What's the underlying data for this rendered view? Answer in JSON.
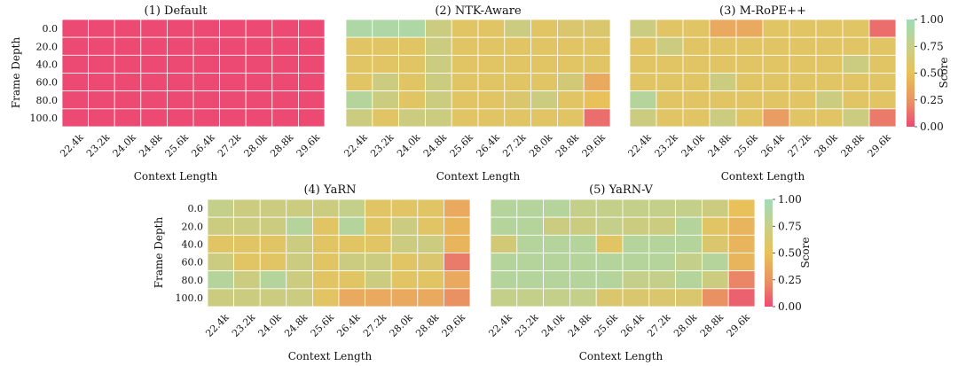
{
  "colormap": {
    "low": "#ec4a73",
    "mid": "#e8c15a",
    "high": "#9fdcb8"
  },
  "chart_data": [
    {
      "type": "heatmap",
      "title": "(1) Default",
      "xlabel": "Context Length",
      "ylabel": "Frame Depth",
      "x_labels": [
        "22.4k",
        "23.2k",
        "24.0k",
        "24.8k",
        "25.6k",
        "26.4k",
        "27.2k",
        "28.0k",
        "28.8k",
        "29.6k"
      ],
      "y_labels": [
        "0.0",
        "20.0",
        "40.0",
        "60.0",
        "80.0",
        "100.0"
      ],
      "values": [
        [
          0,
          0,
          0,
          0,
          0,
          0,
          0,
          0,
          0,
          0
        ],
        [
          0,
          0,
          0,
          0,
          0,
          0,
          0,
          0,
          0,
          0
        ],
        [
          0,
          0,
          0,
          0,
          0,
          0,
          0,
          0,
          0,
          0
        ],
        [
          0,
          0,
          0,
          0,
          0,
          0,
          0,
          0,
          0,
          0
        ],
        [
          0,
          0,
          0,
          0,
          0,
          0,
          0,
          0,
          0,
          0
        ],
        [
          0,
          0,
          0,
          0,
          0,
          0,
          0,
          0,
          0,
          0
        ]
      ]
    },
    {
      "type": "heatmap",
      "title": "(2) NTK-Aware",
      "xlabel": "Context Length",
      "ylabel": "",
      "x_labels": [
        "22.4k",
        "23.2k",
        "24.0k",
        "24.8k",
        "25.6k",
        "26.4k",
        "27.2k",
        "28.0k",
        "28.8k",
        "29.6k"
      ],
      "y_labels": [],
      "values": [
        [
          0.9,
          0.9,
          0.9,
          0.7,
          0.55,
          0.55,
          0.7,
          0.55,
          0.6,
          0.6
        ],
        [
          0.55,
          0.55,
          0.55,
          0.7,
          0.55,
          0.55,
          0.55,
          0.55,
          0.55,
          0.55
        ],
        [
          0.55,
          0.55,
          0.55,
          0.7,
          0.55,
          0.55,
          0.55,
          0.55,
          0.55,
          0.55
        ],
        [
          0.55,
          0.7,
          0.55,
          0.7,
          0.55,
          0.55,
          0.55,
          0.55,
          0.65,
          0.4
        ],
        [
          0.85,
          0.7,
          0.55,
          0.7,
          0.55,
          0.55,
          0.6,
          0.7,
          0.55,
          0.5
        ],
        [
          0.7,
          0.55,
          0.7,
          0.7,
          0.55,
          0.55,
          0.55,
          0.55,
          0.55,
          0.15
        ]
      ]
    },
    {
      "type": "heatmap",
      "title": "(3) M-RoPE++",
      "xlabel": "Context Length",
      "ylabel": "",
      "x_labels": [
        "22.4k",
        "23.2k",
        "24.0k",
        "24.8k",
        "25.6k",
        "26.4k",
        "27.2k",
        "28.0k",
        "28.8k",
        "29.6k"
      ],
      "y_labels": [],
      "values": [
        [
          0.7,
          0.55,
          0.55,
          0.4,
          0.4,
          0.55,
          0.55,
          0.55,
          0.55,
          0.15
        ],
        [
          0.55,
          0.7,
          0.55,
          0.55,
          0.55,
          0.55,
          0.55,
          0.55,
          0.55,
          0.55
        ],
        [
          0.55,
          0.55,
          0.55,
          0.55,
          0.55,
          0.55,
          0.55,
          0.55,
          0.7,
          0.55
        ],
        [
          0.55,
          0.55,
          0.55,
          0.7,
          0.55,
          0.55,
          0.55,
          0.55,
          0.55,
          0.55
        ],
        [
          0.85,
          0.55,
          0.55,
          0.55,
          0.55,
          0.55,
          0.55,
          0.7,
          0.55,
          0.55
        ],
        [
          0.7,
          0.55,
          0.55,
          0.7,
          0.55,
          0.35,
          0.55,
          0.55,
          0.7,
          0.2
        ]
      ]
    },
    {
      "type": "heatmap",
      "title": "(4) YaRN",
      "xlabel": "Context Length",
      "ylabel": "Frame Depth",
      "x_labels": [
        "22.4k",
        "23.2k",
        "24.0k",
        "24.8k",
        "25.6k",
        "26.4k",
        "27.2k",
        "28.0k",
        "28.8k",
        "29.6k"
      ],
      "y_labels": [
        "0.0",
        "20.0",
        "40.0",
        "60.0",
        "80.0",
        "100.0"
      ],
      "values": [
        [
          0.75,
          0.7,
          0.7,
          0.7,
          0.7,
          0.75,
          0.55,
          0.55,
          0.55,
          0.4
        ],
        [
          0.7,
          0.7,
          0.7,
          0.85,
          0.55,
          0.85,
          0.55,
          0.7,
          0.55,
          0.45
        ],
        [
          0.55,
          0.55,
          0.55,
          0.7,
          0.55,
          0.55,
          0.55,
          0.7,
          0.7,
          0.45
        ],
        [
          0.7,
          0.55,
          0.55,
          0.7,
          0.55,
          0.7,
          0.7,
          0.55,
          0.6,
          0.2
        ],
        [
          0.85,
          0.7,
          0.85,
          0.7,
          0.55,
          0.55,
          0.7,
          0.55,
          0.55,
          0.4
        ],
        [
          0.7,
          0.7,
          0.7,
          0.7,
          0.55,
          0.4,
          0.4,
          0.4,
          0.4,
          0.3
        ]
      ]
    },
    {
      "type": "heatmap",
      "title": "(5) YaRN-V",
      "xlabel": "Context Length",
      "ylabel": "",
      "x_labels": [
        "22.4k",
        "23.2k",
        "24.0k",
        "24.8k",
        "25.6k",
        "26.4k",
        "27.2k",
        "28.0k",
        "28.8k",
        "29.6k"
      ],
      "y_labels": [],
      "values": [
        [
          0.85,
          0.85,
          0.85,
          0.75,
          0.75,
          0.75,
          0.75,
          0.75,
          0.7,
          0.5
        ],
        [
          0.85,
          0.85,
          0.7,
          0.7,
          0.75,
          0.7,
          0.7,
          0.85,
          0.55,
          0.45
        ],
        [
          0.65,
          0.85,
          0.85,
          0.85,
          0.55,
          0.85,
          0.85,
          0.85,
          0.6,
          0.45
        ],
        [
          0.85,
          0.85,
          0.85,
          0.85,
          0.85,
          0.85,
          0.85,
          0.75,
          0.85,
          0.45
        ],
        [
          0.85,
          0.85,
          0.85,
          0.85,
          0.85,
          0.75,
          0.75,
          0.85,
          0.7,
          0.25
        ],
        [
          0.75,
          0.75,
          0.75,
          0.75,
          0.6,
          0.6,
          0.6,
          0.6,
          0.3,
          0.1
        ]
      ]
    }
  ],
  "colorbars": [
    {
      "label": "Score",
      "ticks": [
        "1.00",
        "0.75",
        "0.50",
        "0.25",
        "0.00"
      ]
    },
    {
      "label": "Score",
      "ticks": [
        "1.00",
        "0.75",
        "0.50",
        "0.25",
        "0.00"
      ]
    }
  ]
}
